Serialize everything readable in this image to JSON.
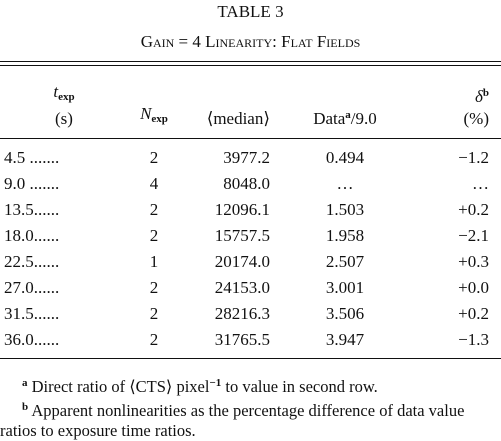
{
  "table_number": "TABLE 3",
  "caption": "Gain = 4 Linearity: Flat Fields",
  "table": {
    "headers": [
      {
        "symbol": "t",
        "subscript": "exp",
        "unit": "(s)"
      },
      {
        "symbol": "N",
        "subscript": "exp"
      },
      {
        "text": "⟨median⟩"
      },
      {
        "text": "Data",
        "sup": "a",
        "suffix": "/9.0"
      },
      {
        "symbol": "δ",
        "sup": "b",
        "unit": "(%)"
      }
    ],
    "rows": [
      [
        "4.5 .......",
        "2",
        "3977.2",
        "0.494",
        "−1.2"
      ],
      [
        "9.0 .......",
        "4",
        "8048.0",
        "…",
        "…"
      ],
      [
        "13.5......",
        "2",
        "12096.1",
        "1.503",
        "+0.2"
      ],
      [
        "18.0......",
        "2",
        "15757.5",
        "1.958",
        "−2.1"
      ],
      [
        "22.5......",
        "1",
        "20174.0",
        "2.507",
        "+0.3"
      ],
      [
        "27.0......",
        "2",
        "24153.0",
        "3.001",
        "+0.0"
      ],
      [
        "31.5......",
        "2",
        "28216.3",
        "3.506",
        "+0.2"
      ],
      [
        "36.0......",
        "2",
        "31765.5",
        "3.947",
        "−1.3"
      ]
    ]
  },
  "footnotes": [
    {
      "marker": "a",
      "text": "Direct ratio of ⟨CTS⟩ pixel",
      "sup": "−1",
      "text_after": " to value in second row."
    },
    {
      "marker": "b",
      "text": "Apparent nonlinearities as the percentage difference of data value ratios to exposure time ratios."
    }
  ]
}
